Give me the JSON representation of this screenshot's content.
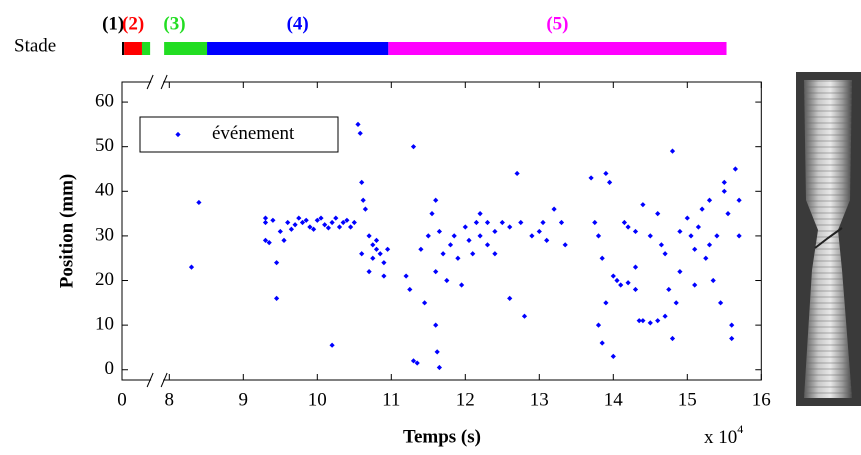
{
  "chart_data": {
    "type": "scatter",
    "x_label": "Temps (s)",
    "y_label": "Position (mm)",
    "x_multiplier": {
      "base": "x 10",
      "exponent": "4"
    },
    "xlim": [
      0,
      16
    ],
    "x_break": [
      0.38,
      7.93
    ],
    "xticks": [
      0,
      8,
      9,
      10,
      11,
      12,
      13,
      14,
      15,
      16
    ],
    "ylim": [
      -2.3,
      64.5
    ],
    "yticks": [
      0,
      10,
      20,
      30,
      40,
      50,
      60
    ],
    "legend": "upper left",
    "stage_label": "Stade",
    "stages": [
      {
        "label": "(1)",
        "color": "#000000",
        "start": 0,
        "end": 0.03
      },
      {
        "label": "(2)",
        "color": "#ff0000",
        "start": 0.03,
        "end": 0.27
      },
      {
        "label": "(3)",
        "color": "#22dd22",
        "start": 0.27,
        "end": 8.51
      },
      {
        "label": "(4)",
        "color": "#0000ff",
        "start": 8.51,
        "end": 10.96
      },
      {
        "label": "(5)",
        "color": "#ff00ff",
        "start": 10.96,
        "end": 15.53
      }
    ],
    "series": [
      {
        "name": "événement",
        "color": "#0000ff",
        "x": [
          8.3,
          8.4,
          9.3,
          9.3,
          9.35,
          9.3,
          9.4,
          9.45,
          9.45,
          9.5,
          9.55,
          9.6,
          9.7,
          9.8,
          9.9,
          10.0,
          10.1,
          10.2,
          10.3,
          10.4,
          10.5,
          9.65,
          9.75,
          9.85,
          9.95,
          10.05,
          10.15,
          10.25,
          10.35,
          10.45,
          10.2,
          10.55,
          10.58,
          10.6,
          10.62,
          10.65,
          10.7,
          10.75,
          10.8,
          10.85,
          10.9,
          10.95,
          10.7,
          10.8,
          10.9,
          10.6,
          10.75,
          11.3,
          11.2,
          11.25,
          11.3,
          11.35,
          11.4,
          11.45,
          11.5,
          11.55,
          11.6,
          11.6,
          11.62,
          11.65,
          11.6,
          11.65,
          11.7,
          11.75,
          11.8,
          11.85,
          11.9,
          11.95,
          12.0,
          12.05,
          12.1,
          12.15,
          12.2,
          12.3,
          12.4,
          12.5,
          12.6,
          12.7,
          12.75,
          12.8,
          12.9,
          13.0,
          13.05,
          13.1,
          13.2,
          13.3,
          13.35,
          12.4,
          12.6,
          12.3,
          12.2,
          13.7,
          13.75,
          13.8,
          13.85,
          13.9,
          13.95,
          14.0,
          14.05,
          14.1,
          14.2,
          14.3,
          13.8,
          13.85,
          13.9,
          14.0,
          14.15,
          14.2,
          14.3,
          14.35,
          14.4,
          14.5,
          14.6,
          14.7,
          14.4,
          14.5,
          14.6,
          14.65,
          14.7,
          14.75,
          14.8,
          14.8,
          14.85,
          14.9,
          15.0,
          15.05,
          15.1,
          15.15,
          15.2,
          15.25,
          15.3,
          15.35,
          15.4,
          15.45,
          15.5,
          15.55,
          15.6,
          15.6,
          15.65,
          15.7,
          15.7,
          15.5,
          15.3,
          15.1,
          14.9,
          14.3
        ],
        "values": [
          23,
          37.5,
          34,
          33,
          28.5,
          29,
          33.5,
          24,
          16,
          31,
          29,
          33,
          32.5,
          33,
          32,
          33.5,
          32.5,
          33,
          32,
          33.5,
          33,
          31.5,
          34,
          33.5,
          31.5,
          34,
          31.8,
          34,
          33,
          32,
          5.5,
          55,
          53,
          42,
          38,
          36,
          30,
          28,
          27,
          26,
          24,
          27,
          22,
          29,
          21,
          26,
          25,
          50,
          21,
          18,
          2,
          1.5,
          27,
          15,
          30,
          35,
          22,
          10,
          4,
          0.5,
          38,
          31,
          26,
          20,
          28,
          30,
          25,
          19,
          32,
          29,
          26,
          33,
          35,
          33,
          31,
          33,
          32,
          44,
          33,
          12,
          30,
          31,
          33,
          29,
          36,
          33,
          28,
          26,
          16,
          28,
          30,
          43,
          33,
          30,
          25,
          44,
          42,
          21,
          20,
          19,
          19.5,
          18,
          10,
          6,
          15,
          3,
          33,
          32,
          31,
          11,
          11,
          10.5,
          11,
          12,
          37,
          30,
          35,
          28,
          26,
          18,
          49,
          7,
          15,
          22,
          34,
          30,
          27,
          32,
          36,
          25,
          38,
          20,
          30,
          15,
          40,
          35,
          10,
          7,
          45,
          30,
          38,
          42,
          28,
          19,
          31,
          23
        ]
      }
    ]
  }
}
